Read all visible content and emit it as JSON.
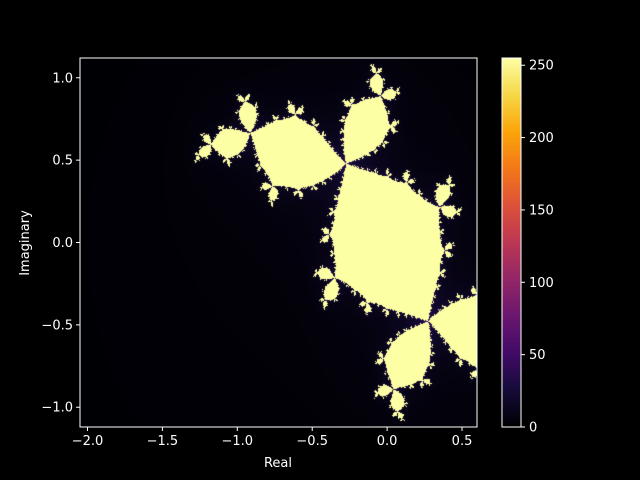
{
  "chart_data": {
    "type": "heatmap",
    "title": "",
    "xlabel": "Real",
    "ylabel": "Imaginary",
    "xlim": [
      -2.05,
      0.6
    ],
    "ylim": [
      -1.12,
      1.12
    ],
    "x_ticks": [
      -2.0,
      -1.5,
      -1.0,
      -0.5,
      0.0,
      0.5
    ],
    "x_tick_labels": [
      "−2.0",
      "−1.5",
      "−1.0",
      "−0.5",
      "0.0",
      "0.5"
    ],
    "y_ticks": [
      -1.0,
      -0.5,
      0.0,
      0.5,
      1.0
    ],
    "y_tick_labels": [
      "−1.0",
      "−0.5",
      "0.0",
      "0.5",
      "1.0"
    ],
    "colorbar": {
      "colormap": "inferno",
      "range": [
        0,
        255
      ],
      "ticks": [
        0,
        50,
        100,
        150,
        200,
        250
      ],
      "tick_labels": [
        "0",
        "50",
        "100",
        "150",
        "200",
        "250"
      ]
    },
    "fractal": {
      "kind": "julia-set",
      "c": [
        -0.12,
        0.74
      ],
      "max_iterations": 256
    },
    "grid": false,
    "legend": "none"
  },
  "colors": {
    "background": "#000000",
    "text": "#ffffff",
    "inside_set": "#fcffa4",
    "outside_dark": "#000004"
  }
}
